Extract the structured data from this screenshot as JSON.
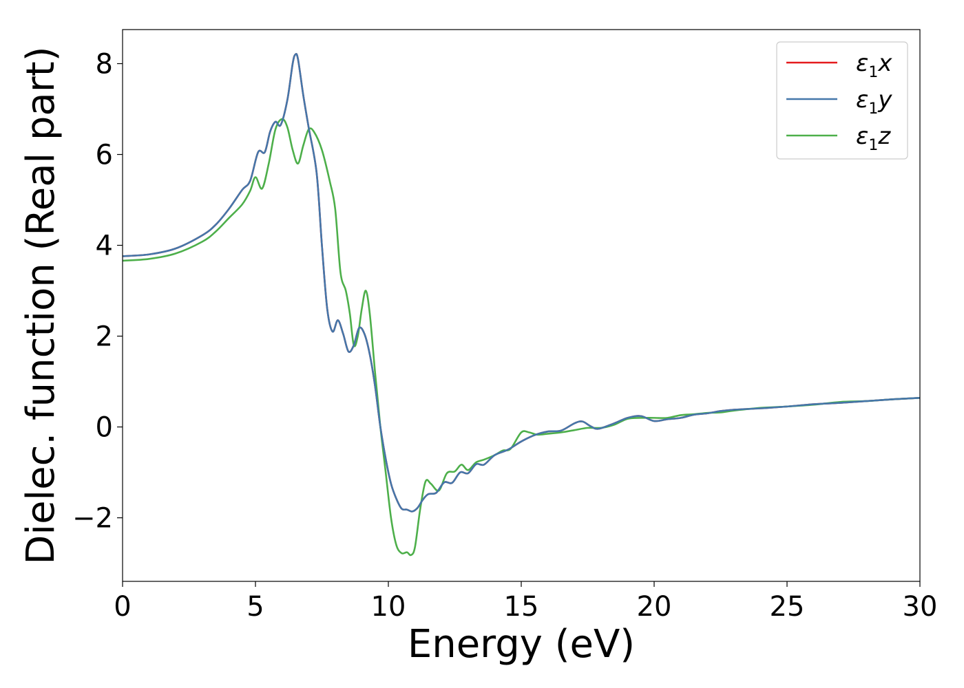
{
  "chart_data": {
    "type": "line",
    "xlabel": "Energy (eV)",
    "ylabel": "Dielec. function (Real part)",
    "xlim": [
      0,
      30
    ],
    "ylim": [
      -3.4,
      8.75
    ],
    "xticks": [
      0,
      5,
      10,
      15,
      20,
      25,
      30
    ],
    "yticks": [
      -2,
      0,
      2,
      4,
      6,
      8
    ],
    "ytick_labels": [
      "−2",
      "0",
      "2",
      "4",
      "6",
      "8"
    ],
    "grid": false,
    "legend_position": "top-right",
    "series": [
      {
        "name": "x",
        "legend": {
          "symbol": "ε",
          "sub": "1",
          "var": "x"
        },
        "color": "#e41a1c",
        "points": [
          [
            0,
            3.76
          ],
          [
            1,
            3.8
          ],
          [
            2,
            3.93
          ],
          [
            3,
            4.22
          ],
          [
            3.5,
            4.45
          ],
          [
            4,
            4.8
          ],
          [
            4.5,
            5.22
          ],
          [
            4.8,
            5.42
          ],
          [
            5.1,
            6.05
          ],
          [
            5.35,
            6.05
          ],
          [
            5.55,
            6.5
          ],
          [
            5.75,
            6.72
          ],
          [
            5.95,
            6.65
          ],
          [
            6.2,
            7.2
          ],
          [
            6.4,
            8.0
          ],
          [
            6.5,
            8.2
          ],
          [
            6.6,
            8.1
          ],
          [
            6.8,
            7.3
          ],
          [
            7.0,
            6.6
          ],
          [
            7.3,
            5.6
          ],
          [
            7.5,
            4.0
          ],
          [
            7.7,
            2.6
          ],
          [
            7.9,
            2.1
          ],
          [
            8.1,
            2.35
          ],
          [
            8.3,
            2.05
          ],
          [
            8.5,
            1.66
          ],
          [
            8.7,
            1.8
          ],
          [
            8.9,
            2.18
          ],
          [
            9.1,
            2.05
          ],
          [
            9.3,
            1.6
          ],
          [
            9.5,
            0.9
          ],
          [
            9.7,
            0.0
          ],
          [
            9.9,
            -0.7
          ],
          [
            10.1,
            -1.25
          ],
          [
            10.3,
            -1.58
          ],
          [
            10.5,
            -1.8
          ],
          [
            10.7,
            -1.82
          ],
          [
            10.9,
            -1.86
          ],
          [
            11.1,
            -1.78
          ],
          [
            11.3,
            -1.6
          ],
          [
            11.5,
            -1.48
          ],
          [
            11.8,
            -1.45
          ],
          [
            12.1,
            -1.22
          ],
          [
            12.4,
            -1.23
          ],
          [
            12.7,
            -1.0
          ],
          [
            13.0,
            -1.02
          ],
          [
            13.3,
            -0.82
          ],
          [
            13.6,
            -0.83
          ],
          [
            14.0,
            -0.62
          ],
          [
            14.5,
            -0.5
          ],
          [
            15.0,
            -0.32
          ],
          [
            15.5,
            -0.18
          ],
          [
            16.0,
            -0.1
          ],
          [
            16.5,
            -0.08
          ],
          [
            17.0,
            0.08
          ],
          [
            17.3,
            0.12
          ],
          [
            17.6,
            0.02
          ],
          [
            17.9,
            -0.04
          ],
          [
            18.5,
            0.08
          ],
          [
            19.0,
            0.2
          ],
          [
            19.5,
            0.24
          ],
          [
            20.0,
            0.13
          ],
          [
            20.5,
            0.17
          ],
          [
            21.0,
            0.2
          ],
          [
            21.5,
            0.27
          ],
          [
            22.0,
            0.3
          ],
          [
            22.5,
            0.35
          ],
          [
            23.0,
            0.38
          ],
          [
            24.0,
            0.41
          ],
          [
            25.0,
            0.45
          ],
          [
            26.0,
            0.5
          ],
          [
            27.0,
            0.53
          ],
          [
            28.0,
            0.57
          ],
          [
            29.0,
            0.61
          ],
          [
            30.0,
            0.64
          ]
        ]
      },
      {
        "name": "y",
        "legend": {
          "symbol": "ε",
          "sub": "1",
          "var": "y"
        },
        "color": "#4477aa",
        "points": [
          [
            0,
            3.76
          ],
          [
            1,
            3.8
          ],
          [
            2,
            3.93
          ],
          [
            3,
            4.22
          ],
          [
            3.5,
            4.45
          ],
          [
            4,
            4.8
          ],
          [
            4.5,
            5.22
          ],
          [
            4.8,
            5.42
          ],
          [
            5.1,
            6.05
          ],
          [
            5.35,
            6.05
          ],
          [
            5.55,
            6.5
          ],
          [
            5.75,
            6.72
          ],
          [
            5.95,
            6.65
          ],
          [
            6.2,
            7.2
          ],
          [
            6.4,
            8.0
          ],
          [
            6.5,
            8.2
          ],
          [
            6.6,
            8.1
          ],
          [
            6.8,
            7.3
          ],
          [
            7.0,
            6.6
          ],
          [
            7.3,
            5.6
          ],
          [
            7.5,
            4.0
          ],
          [
            7.7,
            2.6
          ],
          [
            7.9,
            2.1
          ],
          [
            8.1,
            2.35
          ],
          [
            8.3,
            2.05
          ],
          [
            8.5,
            1.66
          ],
          [
            8.7,
            1.8
          ],
          [
            8.9,
            2.18
          ],
          [
            9.1,
            2.05
          ],
          [
            9.3,
            1.6
          ],
          [
            9.5,
            0.9
          ],
          [
            9.7,
            0.0
          ],
          [
            9.9,
            -0.7
          ],
          [
            10.1,
            -1.25
          ],
          [
            10.3,
            -1.58
          ],
          [
            10.5,
            -1.8
          ],
          [
            10.7,
            -1.82
          ],
          [
            10.9,
            -1.86
          ],
          [
            11.1,
            -1.78
          ],
          [
            11.3,
            -1.6
          ],
          [
            11.5,
            -1.48
          ],
          [
            11.8,
            -1.45
          ],
          [
            12.1,
            -1.22
          ],
          [
            12.4,
            -1.23
          ],
          [
            12.7,
            -1.0
          ],
          [
            13.0,
            -1.02
          ],
          [
            13.3,
            -0.82
          ],
          [
            13.6,
            -0.83
          ],
          [
            14.0,
            -0.62
          ],
          [
            14.5,
            -0.5
          ],
          [
            15.0,
            -0.32
          ],
          [
            15.5,
            -0.18
          ],
          [
            16.0,
            -0.1
          ],
          [
            16.5,
            -0.08
          ],
          [
            17.0,
            0.08
          ],
          [
            17.3,
            0.12
          ],
          [
            17.6,
            0.02
          ],
          [
            17.9,
            -0.04
          ],
          [
            18.5,
            0.08
          ],
          [
            19.0,
            0.2
          ],
          [
            19.5,
            0.24
          ],
          [
            20.0,
            0.13
          ],
          [
            20.5,
            0.17
          ],
          [
            21.0,
            0.2
          ],
          [
            21.5,
            0.27
          ],
          [
            22.0,
            0.3
          ],
          [
            22.5,
            0.35
          ],
          [
            23.0,
            0.38
          ],
          [
            24.0,
            0.41
          ],
          [
            25.0,
            0.45
          ],
          [
            26.0,
            0.5
          ],
          [
            27.0,
            0.53
          ],
          [
            28.0,
            0.57
          ],
          [
            29.0,
            0.61
          ],
          [
            30.0,
            0.64
          ]
        ]
      },
      {
        "name": "z",
        "legend": {
          "symbol": "ε",
          "sub": "1",
          "var": "z"
        },
        "color": "#4daf4a",
        "points": [
          [
            0,
            3.66
          ],
          [
            1,
            3.7
          ],
          [
            2,
            3.82
          ],
          [
            3,
            4.08
          ],
          [
            3.5,
            4.3
          ],
          [
            4,
            4.6
          ],
          [
            4.5,
            4.9
          ],
          [
            4.8,
            5.2
          ],
          [
            5.0,
            5.5
          ],
          [
            5.25,
            5.25
          ],
          [
            5.5,
            5.8
          ],
          [
            5.75,
            6.55
          ],
          [
            6.0,
            6.78
          ],
          [
            6.2,
            6.6
          ],
          [
            6.4,
            6.1
          ],
          [
            6.6,
            5.8
          ],
          [
            6.8,
            6.2
          ],
          [
            7.0,
            6.55
          ],
          [
            7.2,
            6.5
          ],
          [
            7.5,
            6.1
          ],
          [
            7.8,
            5.4
          ],
          [
            8.0,
            4.8
          ],
          [
            8.2,
            3.4
          ],
          [
            8.4,
            3.0
          ],
          [
            8.55,
            2.5
          ],
          [
            8.7,
            1.8
          ],
          [
            8.85,
            2.0
          ],
          [
            9.0,
            2.6
          ],
          [
            9.15,
            3.0
          ],
          [
            9.3,
            2.5
          ],
          [
            9.5,
            1.2
          ],
          [
            9.7,
            0.0
          ],
          [
            9.9,
            -1.0
          ],
          [
            10.1,
            -2.0
          ],
          [
            10.3,
            -2.6
          ],
          [
            10.5,
            -2.78
          ],
          [
            10.7,
            -2.76
          ],
          [
            10.85,
            -2.82
          ],
          [
            11.0,
            -2.65
          ],
          [
            11.2,
            -1.8
          ],
          [
            11.4,
            -1.2
          ],
          [
            11.6,
            -1.25
          ],
          [
            11.9,
            -1.4
          ],
          [
            12.2,
            -1.02
          ],
          [
            12.5,
            -0.98
          ],
          [
            12.75,
            -0.83
          ],
          [
            13.0,
            -0.95
          ],
          [
            13.3,
            -0.78
          ],
          [
            13.6,
            -0.72
          ],
          [
            14.0,
            -0.62
          ],
          [
            14.3,
            -0.52
          ],
          [
            14.6,
            -0.48
          ],
          [
            15.0,
            -0.12
          ],
          [
            15.3,
            -0.12
          ],
          [
            15.6,
            -0.17
          ],
          [
            16.0,
            -0.15
          ],
          [
            16.5,
            -0.12
          ],
          [
            17.0,
            -0.07
          ],
          [
            17.5,
            -0.02
          ],
          [
            18.0,
            -0.02
          ],
          [
            18.5,
            0.05
          ],
          [
            19.0,
            0.18
          ],
          [
            19.5,
            0.2
          ],
          [
            20.0,
            0.2
          ],
          [
            20.5,
            0.2
          ],
          [
            21.0,
            0.26
          ],
          [
            21.5,
            0.28
          ],
          [
            22.0,
            0.31
          ],
          [
            22.5,
            0.32
          ],
          [
            23.0,
            0.36
          ],
          [
            24.0,
            0.42
          ],
          [
            25.0,
            0.45
          ],
          [
            26.0,
            0.49
          ],
          [
            27.0,
            0.55
          ],
          [
            28.0,
            0.57
          ],
          [
            29.0,
            0.61
          ],
          [
            30.0,
            0.64
          ]
        ]
      }
    ]
  }
}
